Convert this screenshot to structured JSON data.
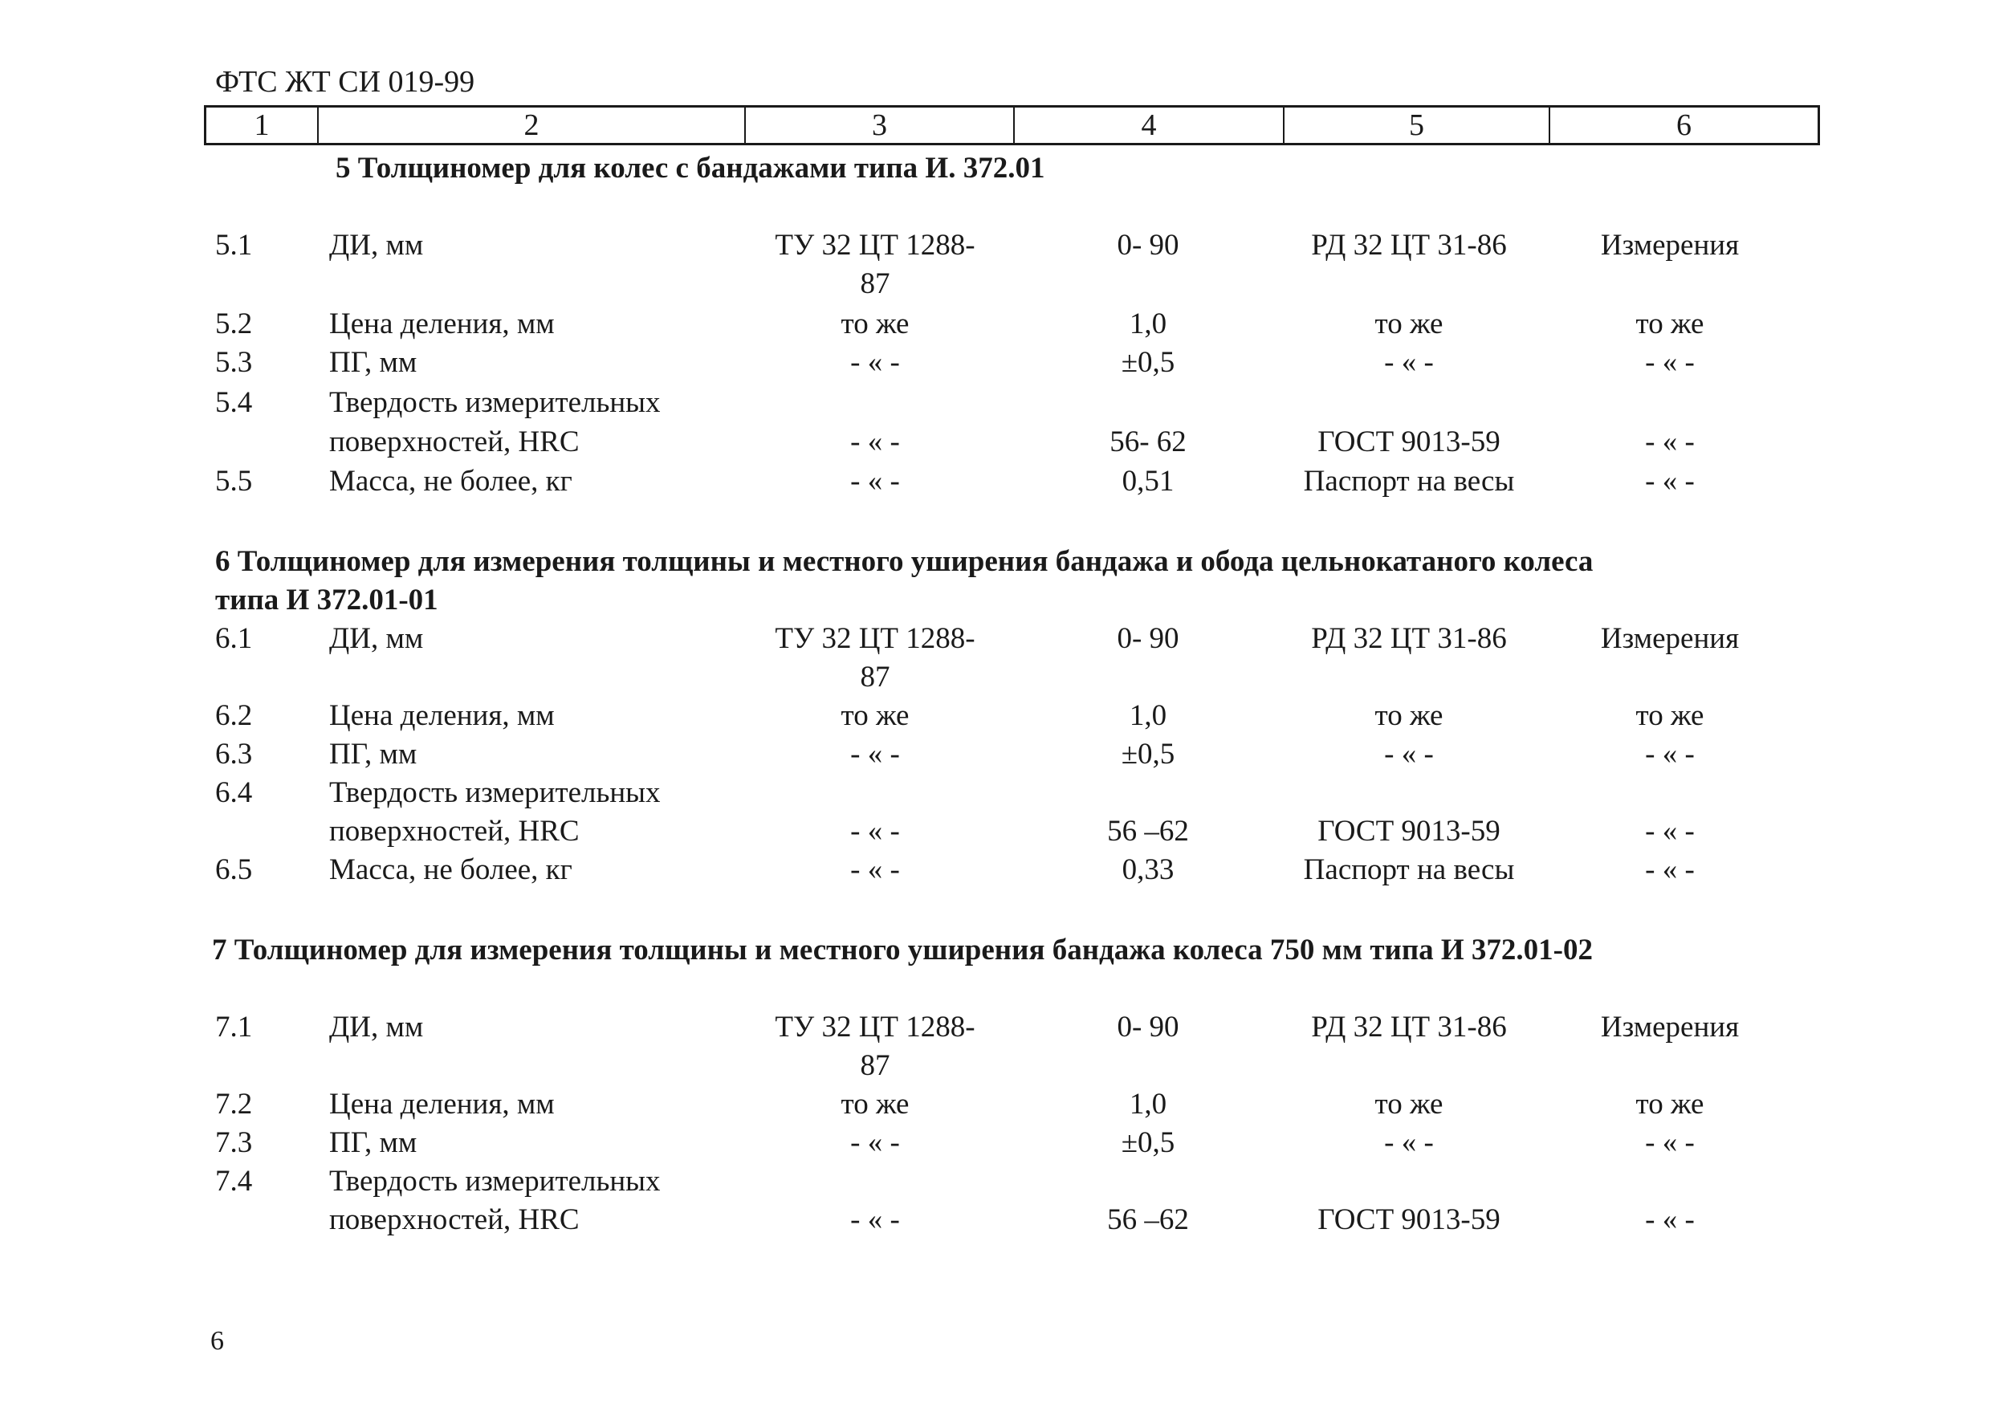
{
  "document_code": "ФТС ЖТ СИ 019-99",
  "header_columns": [
    "1",
    "2",
    "3",
    "4",
    "5",
    "6"
  ],
  "sections": [
    {
      "title": "5 Толщиномер для колес с бандажами типа И. 372.01",
      "rows": [
        {
          "num": "5.1",
          "name": "ДИ, мм",
          "doc": "ТУ 32 ЦТ 1288-",
          "doc_cont": "87",
          "value": "0- 90",
          "method": "РД 32 ЦТ 31-86",
          "note": "Измерения"
        },
        {
          "num": "5.2",
          "name": "Цена деления, мм",
          "doc": "то же",
          "value": "1,0",
          "method": "то же",
          "note": "то же"
        },
        {
          "num": "5.3",
          "name": "ПГ, мм",
          "doc": "- « -",
          "value": "±0,5",
          "method": "- « -",
          "note": "- « -"
        },
        {
          "num": "5.4",
          "name": "Твердость измерительных",
          "name_cont": "поверхностей, HRC",
          "doc": "- « -",
          "value": "56- 62",
          "method": "ГОСТ 9013-59",
          "note": "- « -"
        },
        {
          "num": "5.5",
          "name": "Масса, не более, кг",
          "doc": "- « -",
          "value": "0,51",
          "method": "Паспорт на весы",
          "note": "- « -"
        }
      ]
    },
    {
      "title_line1": "6 Толщиномер для измерения толщины и местного уширения бандажа и обода цельнокатаного колеса",
      "title_line2": "типа И 372.01-01",
      "rows": [
        {
          "num": "6.1",
          "name": "ДИ, мм",
          "doc": "ТУ 32 ЦТ 1288-",
          "doc_cont": "87",
          "value": "0- 90",
          "method": "РД 32 ЦТ 31-86",
          "note": "Измерения"
        },
        {
          "num": "6.2",
          "name": "Цена деления, мм",
          "doc": "то же",
          "value": "1,0",
          "method": "то же",
          "note": "то же"
        },
        {
          "num": "6.3",
          "name": "ПГ, мм",
          "doc": "- « -",
          "value": "±0,5",
          "method": "- « -",
          "note": "- « -"
        },
        {
          "num": "6.4",
          "name": "Твердость измерительных",
          "name_cont": "поверхностей, HRC",
          "doc": "- « -",
          "value": "56 –62",
          "method": "ГОСТ 9013-59",
          "note": "- « -"
        },
        {
          "num": "6.5",
          "name": "Масса, не более, кг",
          "doc": "- « -",
          "value": "0,33",
          "method": "Паспорт на весы",
          "note": "- « -"
        }
      ]
    },
    {
      "title": "7 Толщиномер для измерения толщины и местного уширения бандажа колеса  750 мм типа И 372.01-02",
      "rows": [
        {
          "num": "7.1",
          "name": "ДИ, мм",
          "doc": "ТУ 32 ЦТ 1288-",
          "doc_cont": "87",
          "value": "0- 90",
          "method": "РД 32 ЦТ 31-86",
          "note": "Измерения"
        },
        {
          "num": "7.2",
          "name": "Цена деления, мм",
          "doc": "то же",
          "value": "1,0",
          "method": "то же",
          "note": "то же"
        },
        {
          "num": "7.3",
          "name": "ПГ, мм",
          "doc": "- « -",
          "value": "±0,5",
          "method": "- « -",
          "note": "- « -"
        },
        {
          "num": "7.4",
          "name": "Твердость измерительных",
          "name_cont": "поверхностей, HRC",
          "doc": "- « -",
          "value": "56 –62",
          "method": "ГОСТ 9013-59",
          "note": "- « -"
        }
      ]
    }
  ],
  "page_number": "6"
}
